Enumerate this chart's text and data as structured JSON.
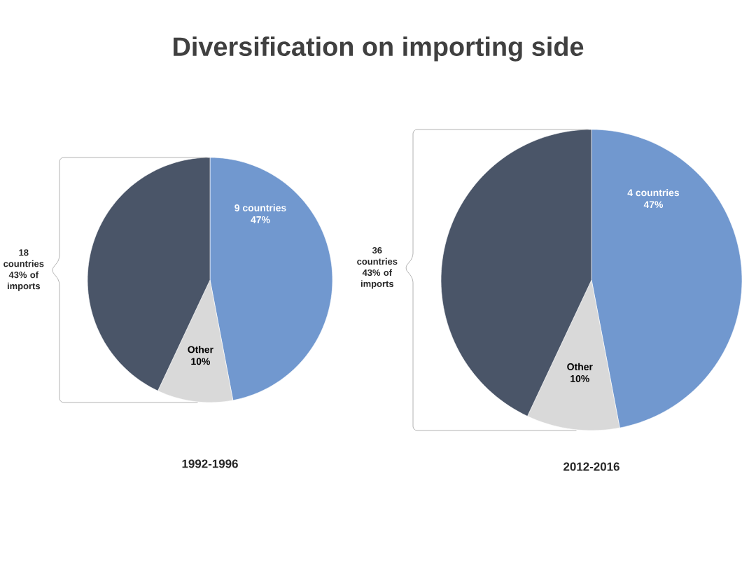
{
  "chart_data": [
    {
      "type": "pie",
      "title": "Diversification on importing side",
      "xlabel": "1992-1996",
      "categories": [
        "9 countries",
        "Other",
        "18 countries"
      ],
      "values": [
        47,
        10,
        43
      ],
      "value_labels": [
        "47%",
        "10%",
        "43% of imports"
      ],
      "colors": [
        "#7198cf",
        "#d9d9d9",
        "#4a5568"
      ]
    },
    {
      "type": "pie",
      "xlabel": "2012-2016",
      "categories": [
        "4 countries",
        "Other",
        "36 countries"
      ],
      "values": [
        47,
        10,
        43
      ],
      "value_labels": [
        "47%",
        "10%",
        "43% of imports"
      ],
      "colors": [
        "#7198cf",
        "#d9d9d9",
        "#4a5568"
      ]
    }
  ]
}
